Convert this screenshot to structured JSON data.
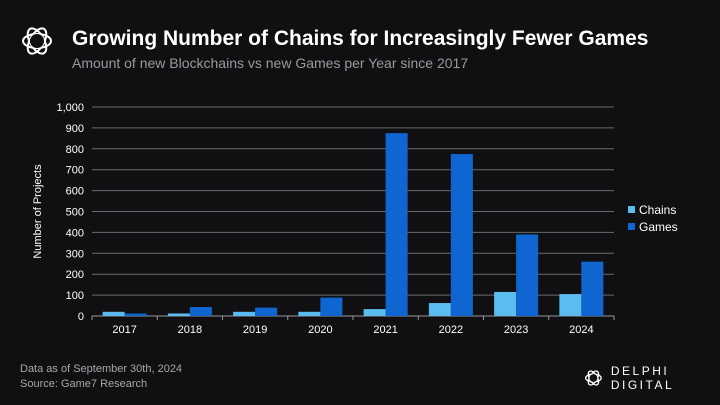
{
  "header": {
    "title": "Growing Number of Chains for Increasingly Fewer Games",
    "subtitle": "Amount of new Blockchains vs new Games per Year since 2017"
  },
  "footer": {
    "note": "Data as of September 30th, 2024",
    "source": "Source: Game7 Research"
  },
  "brand": {
    "name": "DELPHI DIGITAL",
    "logo_icon": "delphi-knot-logo"
  },
  "chart_data": {
    "type": "bar",
    "title": "Growing Number of Chains for Increasingly Fewer Games",
    "subtitle": "Amount of new Blockchains vs new Games per Year since 2017",
    "xlabel": "",
    "ylabel": "Number of Projects",
    "ylim": [
      0,
      1000
    ],
    "yticks": [
      0,
      100,
      200,
      300,
      400,
      500,
      600,
      700,
      800,
      900,
      1000
    ],
    "ytick_labels": [
      "0",
      "100",
      "200",
      "300",
      "400",
      "500",
      "600",
      "700",
      "800",
      "900",
      "1,000"
    ],
    "grid": true,
    "legend_position": "right",
    "categories": [
      "2017",
      "2018",
      "2019",
      "2020",
      "2021",
      "2022",
      "2023",
      "2024"
    ],
    "series": [
      {
        "name": "Chains",
        "color": "#5bbcf0",
        "values": [
          20,
          12,
          20,
          20,
          33,
          62,
          115,
          105
        ]
      },
      {
        "name": "Games",
        "color": "#0f66d0",
        "values": [
          12,
          43,
          40,
          88,
          875,
          775,
          390,
          260
        ]
      }
    ]
  }
}
